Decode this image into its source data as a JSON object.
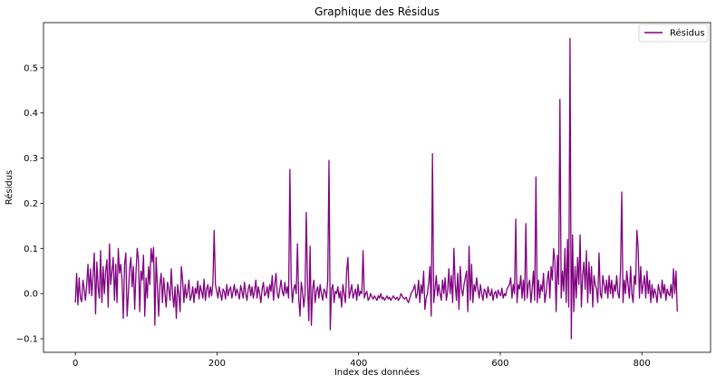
{
  "chart_data": {
    "type": "line",
    "title": "Graphique des Résidus",
    "xlabel": "Index des données",
    "ylabel": "Résidus",
    "xlim": [
      -45,
      897
    ],
    "ylim": [
      -0.13,
      0.6
    ],
    "xticks": [
      0,
      200,
      400,
      600,
      800
    ],
    "yticks": [
      -0.1,
      0.0,
      0.1,
      0.2,
      0.3,
      0.4,
      0.5
    ],
    "ytick_labels": [
      "−0.1",
      "0.0",
      "0.1",
      "0.2",
      "0.3",
      "0.4",
      "0.5"
    ],
    "grid": false,
    "legend": {
      "position": "top-right",
      "entries": [
        "Résidus"
      ]
    },
    "series": [
      {
        "name": "Résidus",
        "color": "#800080",
        "x_start": 0,
        "x_step": 1,
        "values": [
          -0.02,
          0.045,
          -0.025,
          0.035,
          -0.01,
          -0.018,
          0.03,
          0.01,
          -0.015,
          0.02,
          0.065,
          0.0,
          0.055,
          -0.005,
          0.04,
          0.09,
          -0.045,
          0.07,
          0.015,
          -0.01,
          0.095,
          -0.02,
          0.06,
          0.0,
          0.05,
          0.075,
          -0.03,
          0.11,
          0.02,
          0.05,
          0.08,
          -0.015,
          0.065,
          -0.02,
          0.1,
          0.045,
          0.065,
          0.03,
          -0.055,
          0.065,
          0.09,
          -0.05,
          0.0,
          0.055,
          0.08,
          0.015,
          0.06,
          -0.035,
          0.045,
          0.1,
          0.075,
          -0.04,
          0.05,
          0.03,
          0.085,
          -0.05,
          0.035,
          -0.01,
          0.06,
          0.02,
          0.1,
          0.07,
          0.102,
          -0.07,
          0.08,
          0.015,
          -0.05,
          0.02,
          0.045,
          -0.02,
          0.035,
          0.0,
          -0.03,
          0.025,
          0.01,
          -0.015,
          0.055,
          0.0,
          -0.03,
          0.015,
          -0.055,
          0.02,
          0.0,
          -0.04,
          0.06,
          0.03,
          -0.02,
          0.02,
          -0.01,
          0.005,
          0.03,
          -0.015,
          -0.005,
          0.015,
          -0.02,
          0.012,
          0.0,
          0.028,
          -0.012,
          0.018,
          0.005,
          -0.01,
          0.032,
          -0.015,
          0.01,
          0.02,
          -0.008,
          0.015,
          -0.005,
          0.025,
          0.14,
          0.02,
          0.005,
          -0.01,
          0.015,
          0.0,
          -0.015,
          0.01,
          0.005,
          -0.012,
          0.02,
          -0.005,
          0.008,
          0.015,
          -0.01,
          0.005,
          0.02,
          -0.005,
          0.01,
          0.0,
          -0.012,
          0.018,
          0.005,
          -0.01,
          0.025,
          0.0,
          -0.015,
          0.01,
          0.02,
          -0.005,
          0.015,
          -0.01,
          0.005,
          0.03,
          -0.01,
          0.015,
          0.0,
          -0.02,
          0.01,
          0.025,
          -0.005,
          0.0,
          0.015,
          -0.01,
          0.02,
          0.005,
          0.04,
          -0.015,
          0.02,
          0.045,
          0.0,
          -0.01,
          0.01,
          0.03,
          0.005,
          -0.005,
          0.025,
          0.0,
          0.015,
          -0.01,
          0.275,
          0.03,
          -0.02,
          0.01,
          0.02,
          0.0,
          0.11,
          -0.01,
          -0.05,
          0.025,
          0.005,
          -0.03,
          0.0,
          0.18,
          0.02,
          -0.06,
          0.105,
          -0.07,
          0.01,
          0.03,
          -0.02,
          0.005,
          0.015,
          -0.01,
          0.02,
          0.0,
          -0.015,
          0.01,
          0.005,
          -0.01,
          0.03,
          0.295,
          -0.08,
          0.01,
          0.02,
          -0.02,
          0.005,
          0.0,
          0.015,
          -0.01,
          0.005,
          -0.03,
          0.02,
          0.0,
          -0.02,
          0.05,
          0.08,
          -0.01,
          0.005,
          0.02,
          -0.01,
          0.0,
          0.01,
          -0.015,
          0.02,
          -0.005,
          0.005,
          0.0,
          0.095,
          -0.01,
          0.0,
          0.005,
          -0.015,
          -0.01,
          0.0,
          -0.008,
          -0.012,
          -0.005,
          -0.01,
          -0.015,
          -0.005,
          -0.01,
          0.0,
          -0.012,
          -0.008,
          -0.015,
          -0.01,
          -0.005,
          -0.012,
          -0.008,
          -0.015,
          -0.01,
          -0.005,
          -0.01,
          -0.012,
          -0.008,
          -0.015,
          -0.01,
          0.0,
          -0.005,
          -0.01,
          -0.012,
          -0.008,
          -0.015,
          -0.02,
          -0.01,
          0.0,
          0.005,
          0.01,
          0.02,
          -0.01,
          0.0,
          0.03,
          -0.02,
          0.02,
          0.0,
          0.05,
          -0.035,
          -0.01,
          0.0,
          0.025,
          0.06,
          -0.05,
          0.31,
          -0.02,
          0.01,
          0.04,
          -0.005,
          0.02,
          0.0,
          -0.015,
          0.03,
          0.0,
          0.035,
          -0.015,
          0.005,
          0.055,
          0.0,
          0.04,
          -0.02,
          0.1,
          0.02,
          -0.015,
          0.045,
          -0.035,
          0.06,
          0.01,
          -0.005,
          0.02,
          0.035,
          0.05,
          -0.04,
          0.105,
          -0.015,
          0.065,
          -0.02,
          0.02,
          0.005,
          0.035,
          0.01,
          -0.01,
          0.02,
          0.0,
          -0.015,
          0.01,
          0.005,
          -0.01,
          0.015,
          0.0,
          -0.005,
          0.01,
          -0.015,
          0.0,
          0.005,
          -0.01,
          0.008,
          0.0,
          -0.005,
          0.012,
          -0.01,
          0.0,
          -0.005,
          0.01,
          0.015,
          0.02,
          0.035,
          -0.01,
          0.02,
          0.0,
          0.165,
          -0.02,
          0.02,
          0.01,
          0.04,
          -0.01,
          0.03,
          -0.015,
          0.155,
          -0.01,
          0.02,
          0.03,
          -0.02,
          0.01,
          0.05,
          -0.015,
          0.258,
          -0.02,
          0.03,
          -0.01,
          0.02,
          0.005,
          0.045,
          -0.02,
          0.0,
          0.03,
          0.05,
          -0.01,
          0.06,
          0.03,
          0.1,
          0.07,
          -0.04,
          0.085,
          0.02,
          0.43,
          -0.01,
          0.05,
          0.005,
          0.1,
          -0.02,
          0.12,
          -0.03,
          0.565,
          -0.1,
          0.13,
          -0.04,
          0.06,
          -0.01,
          0.08,
          0.02,
          0.13,
          -0.03,
          0.04,
          0.07,
          0.01,
          0.095,
          -0.02,
          0.07,
          0.0,
          0.06,
          -0.03,
          0.04,
          0.02,
          0.01,
          -0.02,
          0.09,
          0.0,
          -0.01,
          0.04,
          0.02,
          0.0,
          0.03,
          -0.01,
          0.04,
          0.0,
          0.03,
          -0.01,
          0.02,
          0.005,
          0.04,
          0.0,
          -0.01,
          0.05,
          0.225,
          -0.02,
          0.03,
          0.0,
          0.05,
          0.02,
          -0.01,
          0.06,
          0.0,
          -0.02,
          0.04,
          0.02,
          0.14,
          0.1,
          -0.01,
          0.06,
          0.0,
          0.02,
          0.04,
          -0.01,
          0.05,
          0.0,
          0.03,
          -0.02,
          0.02,
          -0.01,
          0.01,
          0.0,
          -0.02,
          0.02,
          0.005,
          -0.01,
          0.03,
          0.0,
          0.02,
          -0.015,
          0.01,
          0.0,
          -0.005,
          0.02,
          -0.01,
          0.055,
          0.0,
          0.05,
          -0.04
        ]
      }
    ]
  }
}
